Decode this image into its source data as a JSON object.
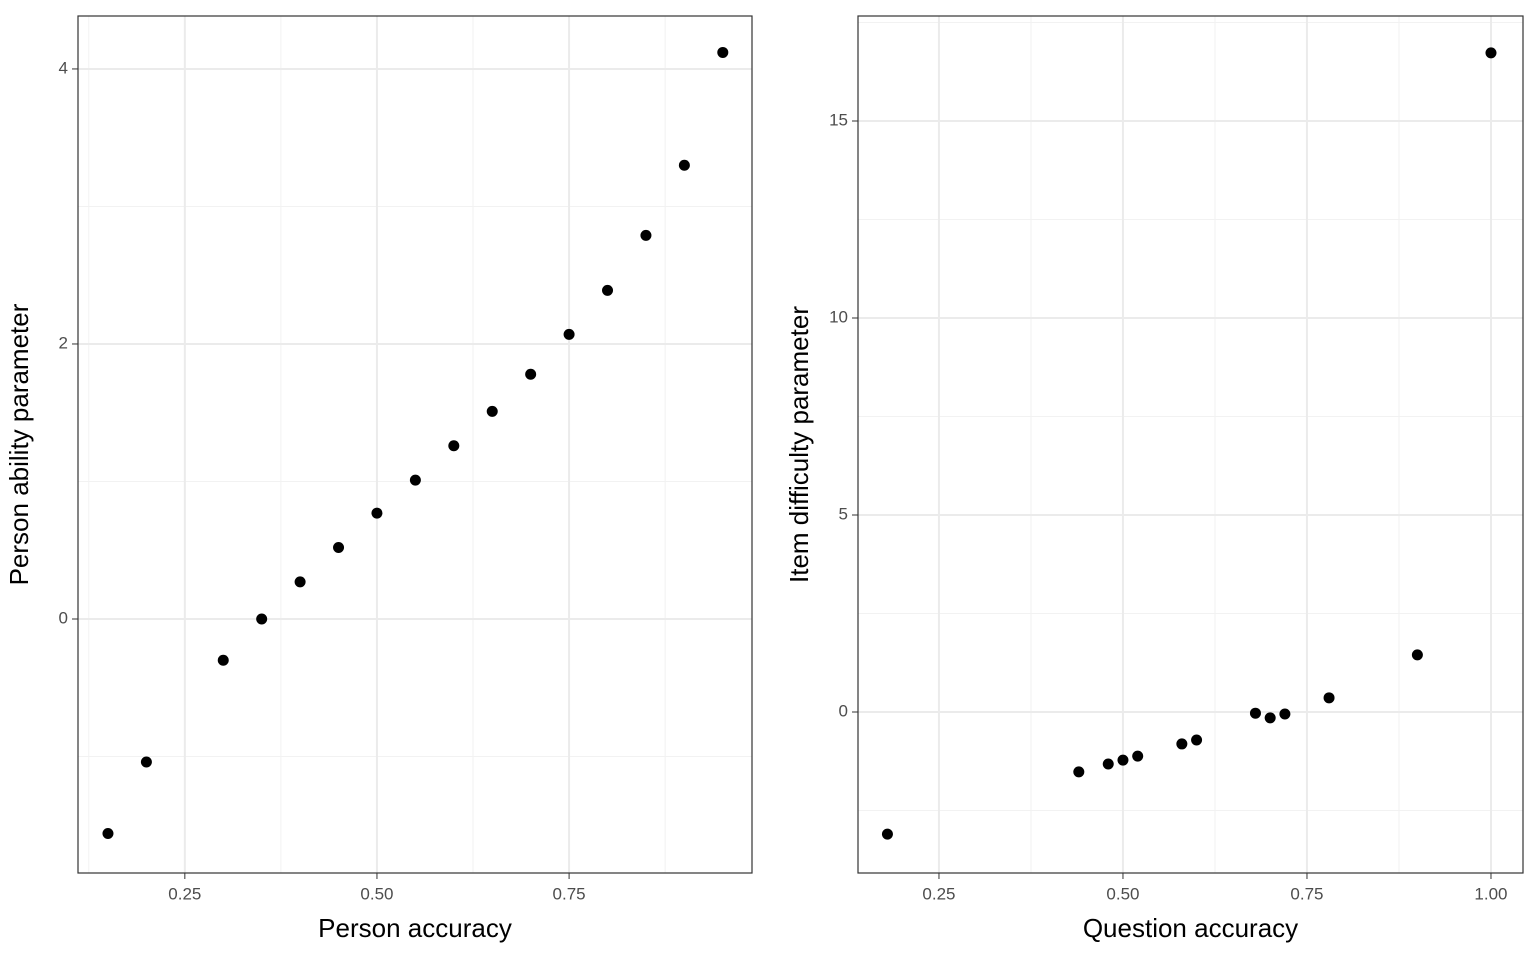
{
  "chart_data": [
    {
      "type": "scatter",
      "xlabel": "Person accuracy",
      "ylabel": "Person ability parameter",
      "color": "#000000",
      "grid": true,
      "x": [
        0.15,
        0.2,
        0.3,
        0.35,
        0.4,
        0.45,
        0.5,
        0.55,
        0.6,
        0.65,
        0.7,
        0.75,
        0.8,
        0.85,
        0.9,
        0.95
      ],
      "values": [
        -1.56,
        -1.04,
        -0.3,
        0,
        0.27,
        0.52,
        0.77,
        1.01,
        1.26,
        1.51,
        1.78,
        2.07,
        2.39,
        2.79,
        3.3,
        4.12
      ],
      "xlim": [
        0.111,
        0.988
      ],
      "ylim": [
        -1.847,
        4.385
      ],
      "xticks": [
        0.25,
        {
          "value": 0.5,
          "label": "0.50"
        },
        0.75
      ],
      "yticks": [
        0,
        2,
        4
      ],
      "xminor": [
        0.125,
        0.375,
        0.625,
        0.875
      ],
      "yminor": [
        -1,
        1,
        3
      ]
    },
    {
      "type": "scatter",
      "xlabel": "Question accuracy",
      "ylabel": "Item difficulty parameter",
      "color": "#000000",
      "grid": true,
      "x": [
        0.18,
        0.44,
        0.48,
        0.5,
        0.52,
        0.58,
        0.6,
        0.68,
        0.7,
        0.72,
        0.78,
        0.9,
        1.0
      ],
      "values": [
        -3.1,
        -1.52,
        -1.32,
        -1.22,
        -1.12,
        -0.81,
        -0.71,
        -0.03,
        -0.15,
        -0.05,
        0.36,
        1.45,
        16.73
      ],
      "xlim": [
        0.14,
        1.0435
      ],
      "ylim": [
        -4.086,
        17.665
      ],
      "xticks": [
        0.25,
        {
          "value": 0.5,
          "label": "0.50"
        },
        0.75,
        {
          "value": 1,
          "label": "1.00"
        }
      ],
      "yticks": [
        0,
        5,
        10,
        15
      ],
      "xminor": [
        0.375,
        0.625,
        0.875
      ],
      "yminor": [
        -2.5,
        2.5,
        7.5,
        12.5,
        17.5
      ]
    }
  ]
}
